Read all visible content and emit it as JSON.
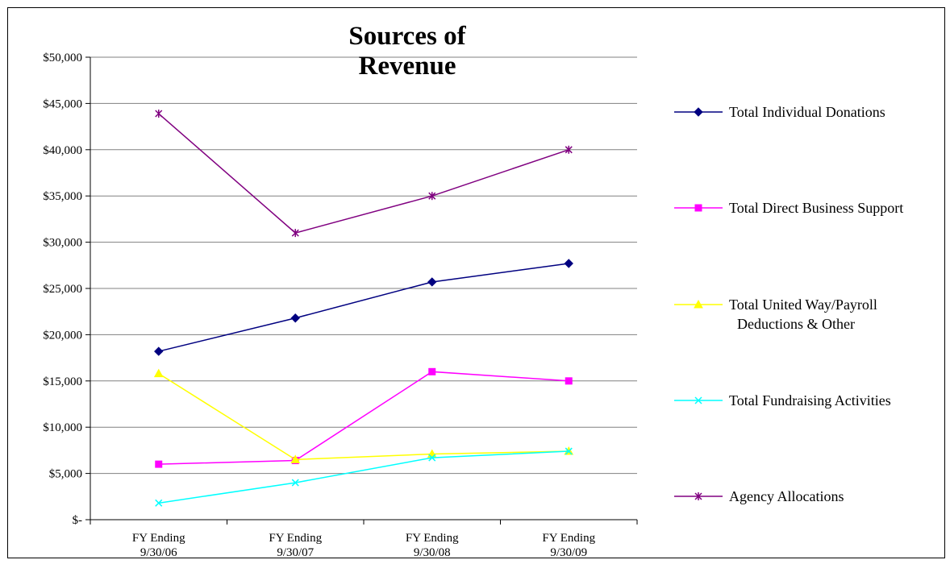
{
  "chart_data": {
    "type": "line",
    "title": [
      "Sources of",
      "Revenue"
    ],
    "categories": [
      [
        "FY Ending",
        "9/30/06"
      ],
      [
        "FY Ending",
        "9/30/07"
      ],
      [
        "FY Ending",
        "9/30/08"
      ],
      [
        "FY Ending",
        "9/30/09"
      ]
    ],
    "ylim": [
      0,
      50000
    ],
    "ytick_values": [
      0,
      5000,
      10000,
      15000,
      20000,
      25000,
      30000,
      35000,
      40000,
      45000,
      50000
    ],
    "ytick_labels": [
      "$-",
      "$5,000",
      "$10,000",
      "$15,000",
      "$20,000",
      "$25,000",
      "$30,000",
      "$35,000",
      "$40,000",
      "$45,000",
      "$50,000"
    ],
    "grid": true,
    "legend_position": "right",
    "series": [
      {
        "name": [
          "Total Individual Donations"
        ],
        "values": [
          18200,
          21800,
          25700,
          27700
        ],
        "color": "#000080",
        "marker": "diamond"
      },
      {
        "name": [
          "Total Direct Business Support"
        ],
        "values": [
          6000,
          6400,
          16000,
          15000
        ],
        "color": "#FF00FF",
        "marker": "square"
      },
      {
        "name": [
          "Total United Way/Payroll",
          "Deductions & Other"
        ],
        "values": [
          15800,
          6500,
          7100,
          7400
        ],
        "color": "#FFFF00",
        "marker": "triangle"
      },
      {
        "name": [
          "Total Fundraising Activities"
        ],
        "values": [
          1800,
          4000,
          6700,
          7400
        ],
        "color": "#00FFFF",
        "marker": "x"
      },
      {
        "name": [
          "Agency Allocations"
        ],
        "values": [
          43900,
          31000,
          35000,
          40000
        ],
        "color": "#800080",
        "marker": "star"
      }
    ]
  }
}
